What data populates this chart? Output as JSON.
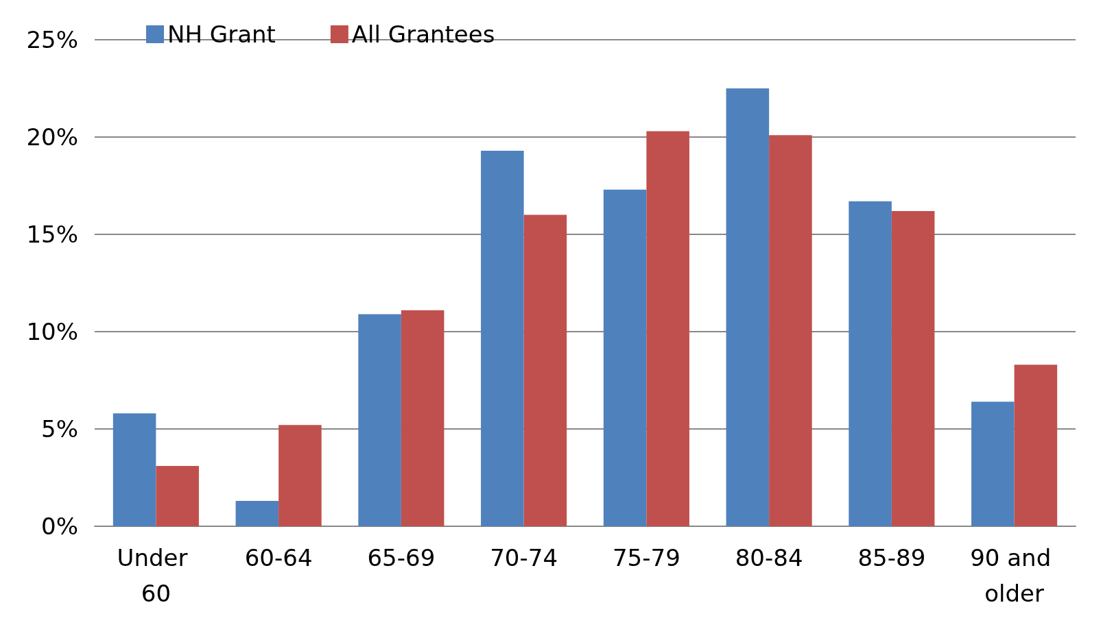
{
  "chart_data": {
    "type": "bar",
    "categories": [
      "Under 60",
      "60-64",
      "65-69",
      "70-74",
      "75-79",
      "80-84",
      "85-89",
      "90 and older"
    ],
    "series": [
      {
        "name": "NH Grant",
        "color": "#4f81bd",
        "values": [
          5.8,
          1.3,
          10.9,
          19.3,
          17.3,
          22.5,
          16.7,
          6.4
        ]
      },
      {
        "name": "All Grantees",
        "color": "#c0504d",
        "values": [
          3.1,
          5.2,
          11.1,
          16.0,
          20.3,
          20.1,
          16.2,
          8.3
        ]
      }
    ],
    "ylim": [
      0,
      25
    ],
    "yticks": [
      {
        "value": 0,
        "label": "0%"
      },
      {
        "value": 5,
        "label": "5%"
      },
      {
        "value": 10,
        "label": "10%"
      },
      {
        "value": 15,
        "label": "15%"
      },
      {
        "value": 20,
        "label": "20%"
      },
      {
        "value": 25,
        "label": "25%"
      }
    ],
    "grid": "y",
    "legend": "top left"
  }
}
